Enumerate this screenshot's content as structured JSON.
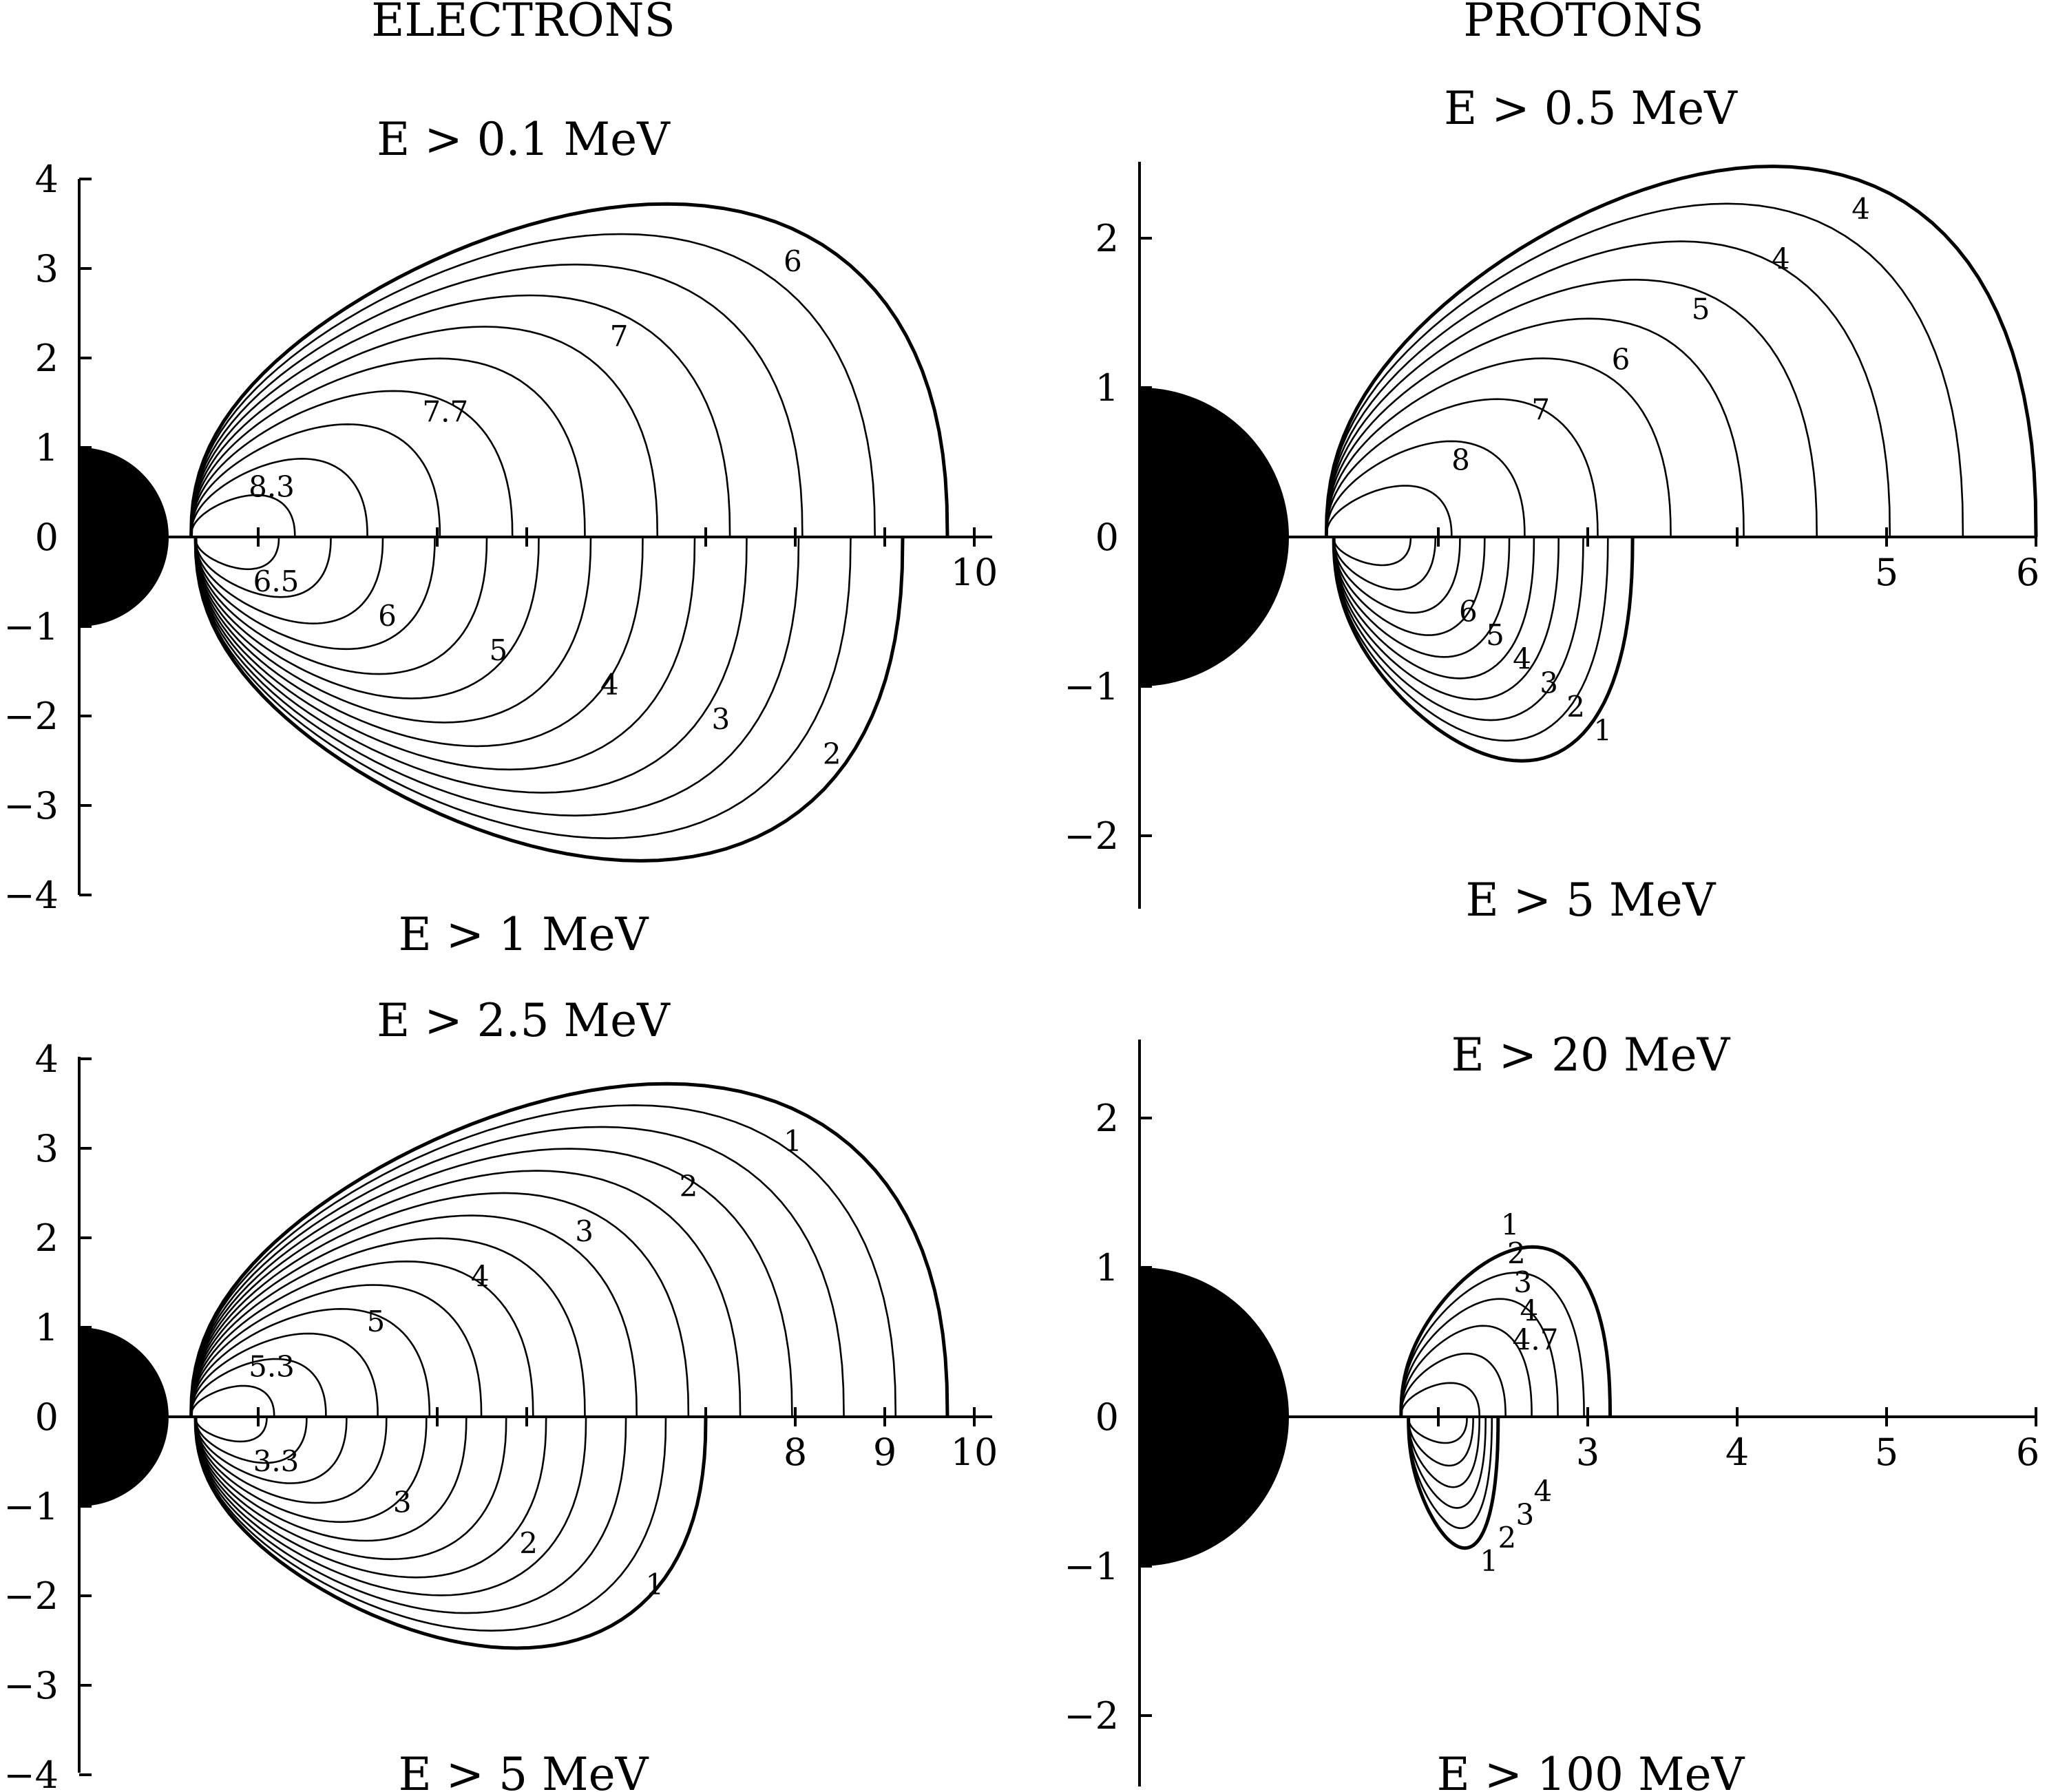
{
  "headers": {
    "left": "ELECTRONS",
    "right": "PROTONS"
  },
  "chart_data": [
    {
      "type": "contour",
      "panel": "top-left",
      "title_upper": "E > 0.1 MeV",
      "title_lower": "E > 1 MeV",
      "x_ticks_labeled": [
        "10"
      ],
      "x_tick_values": [
        0,
        2,
        4,
        5,
        7,
        8,
        9,
        10
      ],
      "y_ticks": [
        "4",
        "3",
        "2",
        "1",
        "0",
        "−1",
        "−2",
        "−3",
        "−4"
      ],
      "xlim": [
        0,
        10.2
      ],
      "ylim": [
        -4,
        4
      ],
      "upper_levels": [
        "8.3",
        "7.7",
        "7",
        "6"
      ],
      "lower_levels": [
        "6.5",
        "6",
        "5",
        "4",
        "3",
        "2"
      ],
      "upper_outer_extent": 9.7,
      "lower_outer_extent": 9.2
    },
    {
      "type": "contour",
      "panel": "top-right",
      "title_upper": "E > 0.5 MeV",
      "title_lower": "E > 5 MeV",
      "x_ticks_labeled": [
        "5",
        "6"
      ],
      "x_tick_values": [
        0,
        2,
        3,
        4,
        5,
        6
      ],
      "y_ticks": [
        "2",
        "1",
        "0",
        "−1",
        "−2"
      ],
      "xlim": [
        0,
        6
      ],
      "ylim": [
        -2.5,
        2.5
      ],
      "upper_levels": [
        "8",
        "7",
        "6",
        "5",
        "4",
        "4"
      ],
      "lower_levels": [
        "6",
        "5",
        "4",
        "3",
        "2",
        "1"
      ],
      "upper_outer_extent": 6.0,
      "lower_outer_extent": 3.3
    },
    {
      "type": "contour",
      "panel": "bottom-left",
      "title_upper": "E > 2.5 MeV",
      "title_lower": "E > 5 MeV",
      "x_ticks_labeled": [
        "8",
        "9",
        "10"
      ],
      "x_tick_values": [
        0,
        2,
        4,
        5,
        7,
        8,
        9,
        10
      ],
      "y_ticks": [
        "4",
        "3",
        "2",
        "1",
        "0",
        "−1",
        "−2",
        "−3",
        "−4"
      ],
      "xlim": [
        0,
        10.2
      ],
      "ylim": [
        -4,
        4
      ],
      "upper_levels": [
        "5.3",
        "5",
        "4",
        "3",
        "2",
        "1"
      ],
      "lower_levels": [
        "3.3",
        "3",
        "2",
        "1"
      ],
      "upper_outer_extent": 9.7,
      "lower_outer_extent": 7.0
    },
    {
      "type": "contour",
      "panel": "bottom-right",
      "title_upper": "E > 20 MeV",
      "title_lower": "E > 100 MeV",
      "x_ticks_labeled": [
        "3",
        "4",
        "5",
        "6"
      ],
      "x_tick_values": [
        0,
        2,
        3,
        4,
        5,
        6
      ],
      "y_ticks": [
        "2",
        "1",
        "0",
        "−1",
        "−2"
      ],
      "xlim": [
        0,
        6
      ],
      "ylim": [
        -2.5,
        2.5
      ],
      "upper_levels": [
        "4.7",
        "4",
        "3",
        "2",
        "1"
      ],
      "lower_levels": [
        "4",
        "3",
        "2",
        "1"
      ],
      "upper_outer_extent": 3.15,
      "lower_outer_extent": 2.4
    }
  ]
}
